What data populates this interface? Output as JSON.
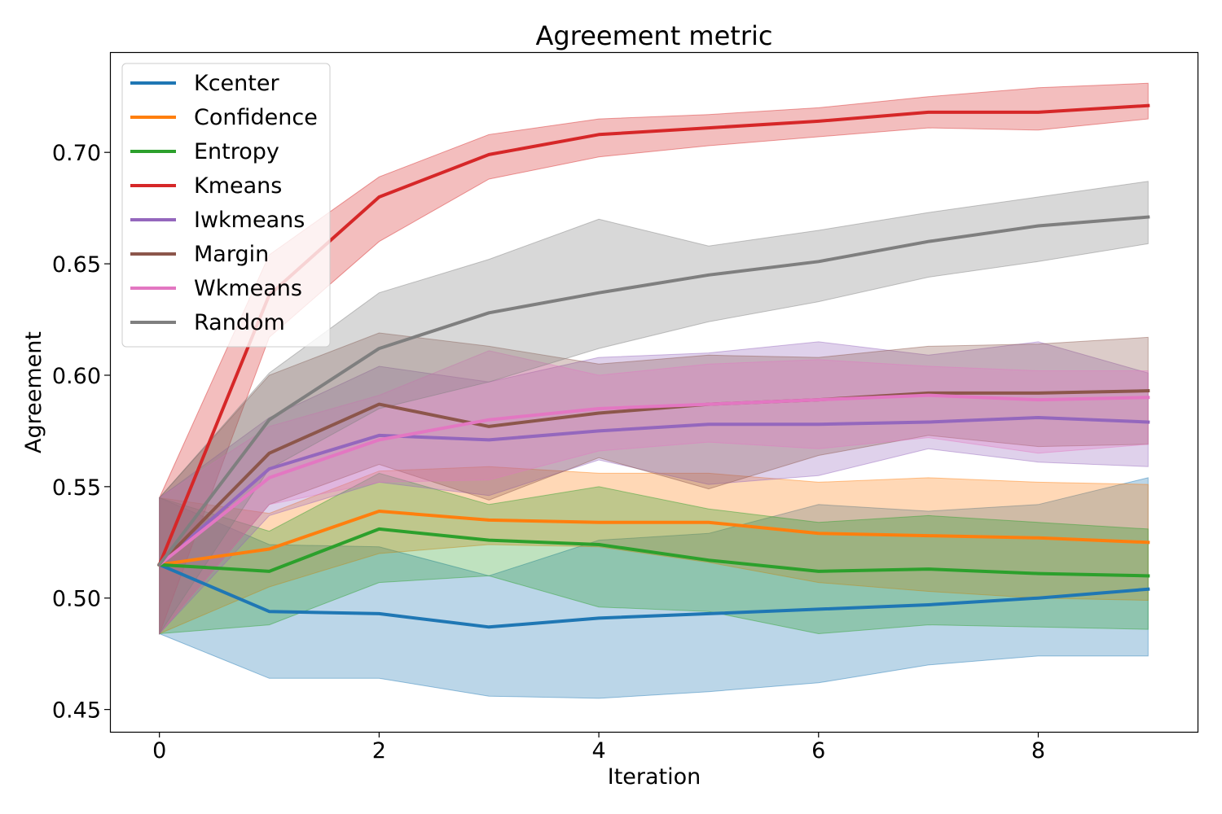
{
  "chart_data": {
    "type": "line",
    "title": "Agreement metric",
    "xlabel": "Iteration",
    "ylabel": "Agreement",
    "xlim": [
      -0.45,
      9.45
    ],
    "ylim": [
      0.44,
      0.745
    ],
    "xticks": [
      0,
      2,
      4,
      6,
      8
    ],
    "xtick_labels": [
      "0",
      "2",
      "4",
      "6",
      "8"
    ],
    "yticks": [
      0.45,
      0.5,
      0.55,
      0.6,
      0.65,
      0.7
    ],
    "ytick_labels": [
      "0.45",
      "0.50",
      "0.55",
      "0.60",
      "0.65",
      "0.70"
    ],
    "grid": false,
    "legend_position": "top-left",
    "x": [
      0,
      1,
      2,
      3,
      4,
      5,
      6,
      7,
      8,
      9
    ],
    "series": [
      {
        "name": "Kcenter",
        "color": "#1f77b4",
        "values": [
          0.515,
          0.494,
          0.493,
          0.487,
          0.491,
          0.493,
          0.495,
          0.497,
          0.5,
          0.504
        ],
        "lower": [
          0.484,
          0.464,
          0.464,
          0.456,
          0.455,
          0.458,
          0.462,
          0.47,
          0.474,
          0.474
        ],
        "upper": [
          0.545,
          0.524,
          0.523,
          0.51,
          0.526,
          0.529,
          0.542,
          0.539,
          0.542,
          0.554
        ]
      },
      {
        "name": "Confidence",
        "color": "#ff7f0e",
        "values": [
          0.515,
          0.522,
          0.539,
          0.535,
          0.534,
          0.534,
          0.529,
          0.528,
          0.527,
          0.525
        ],
        "lower": [
          0.484,
          0.505,
          0.52,
          0.524,
          0.523,
          0.516,
          0.507,
          0.503,
          0.5,
          0.499
        ],
        "upper": [
          0.545,
          0.538,
          0.557,
          0.559,
          0.556,
          0.556,
          0.552,
          0.554,
          0.552,
          0.551
        ]
      },
      {
        "name": "Entropy",
        "color": "#2ca02c",
        "values": [
          0.515,
          0.512,
          0.531,
          0.526,
          0.524,
          0.517,
          0.512,
          0.513,
          0.511,
          0.51
        ],
        "lower": [
          0.484,
          0.488,
          0.507,
          0.51,
          0.496,
          0.494,
          0.484,
          0.488,
          0.487,
          0.486
        ],
        "upper": [
          0.545,
          0.53,
          0.556,
          0.542,
          0.55,
          0.54,
          0.534,
          0.537,
          0.534,
          0.531
        ]
      },
      {
        "name": "Kmeans",
        "color": "#d62728",
        "values": [
          0.515,
          0.636,
          0.68,
          0.699,
          0.708,
          0.711,
          0.714,
          0.718,
          0.718,
          0.721
        ],
        "lower": [
          0.484,
          0.617,
          0.66,
          0.688,
          0.698,
          0.703,
          0.707,
          0.711,
          0.71,
          0.715
        ],
        "upper": [
          0.545,
          0.654,
          0.689,
          0.708,
          0.715,
          0.717,
          0.72,
          0.725,
          0.729,
          0.731
        ]
      },
      {
        "name": "Iwkmeans",
        "color": "#9467bd",
        "values": [
          0.515,
          0.558,
          0.573,
          0.571,
          0.575,
          0.578,
          0.578,
          0.579,
          0.581,
          0.579
        ],
        "lower": [
          0.484,
          0.537,
          0.552,
          0.546,
          0.562,
          0.551,
          0.555,
          0.567,
          0.561,
          0.559
        ],
        "upper": [
          0.545,
          0.581,
          0.604,
          0.597,
          0.608,
          0.61,
          0.615,
          0.609,
          0.615,
          0.601
        ]
      },
      {
        "name": "Margin",
        "color": "#8c564b",
        "values": [
          0.515,
          0.565,
          0.587,
          0.577,
          0.583,
          0.587,
          0.589,
          0.592,
          0.592,
          0.593
        ],
        "lower": [
          0.484,
          0.542,
          0.56,
          0.544,
          0.563,
          0.549,
          0.564,
          0.573,
          0.568,
          0.569
        ],
        "upper": [
          0.545,
          0.6,
          0.619,
          0.613,
          0.605,
          0.609,
          0.608,
          0.613,
          0.614,
          0.617
        ]
      },
      {
        "name": "Wkmeans",
        "color": "#e377c2",
        "values": [
          0.515,
          0.554,
          0.571,
          0.58,
          0.585,
          0.587,
          0.589,
          0.591,
          0.589,
          0.59
        ],
        "lower": [
          0.484,
          0.542,
          0.552,
          0.553,
          0.566,
          0.57,
          0.567,
          0.572,
          0.565,
          0.569
        ],
        "upper": [
          0.545,
          0.577,
          0.591,
          0.611,
          0.6,
          0.605,
          0.607,
          0.604,
          0.602,
          0.602
        ]
      },
      {
        "name": "Random",
        "color": "#7f7f7f",
        "values": [
          0.515,
          0.58,
          0.612,
          0.628,
          0.637,
          0.645,
          0.651,
          0.66,
          0.667,
          0.671
        ],
        "lower": [
          0.484,
          0.558,
          0.585,
          0.597,
          0.612,
          0.624,
          0.633,
          0.644,
          0.651,
          0.659
        ],
        "upper": [
          0.545,
          0.601,
          0.637,
          0.652,
          0.67,
          0.658,
          0.665,
          0.673,
          0.68,
          0.687
        ]
      }
    ]
  }
}
